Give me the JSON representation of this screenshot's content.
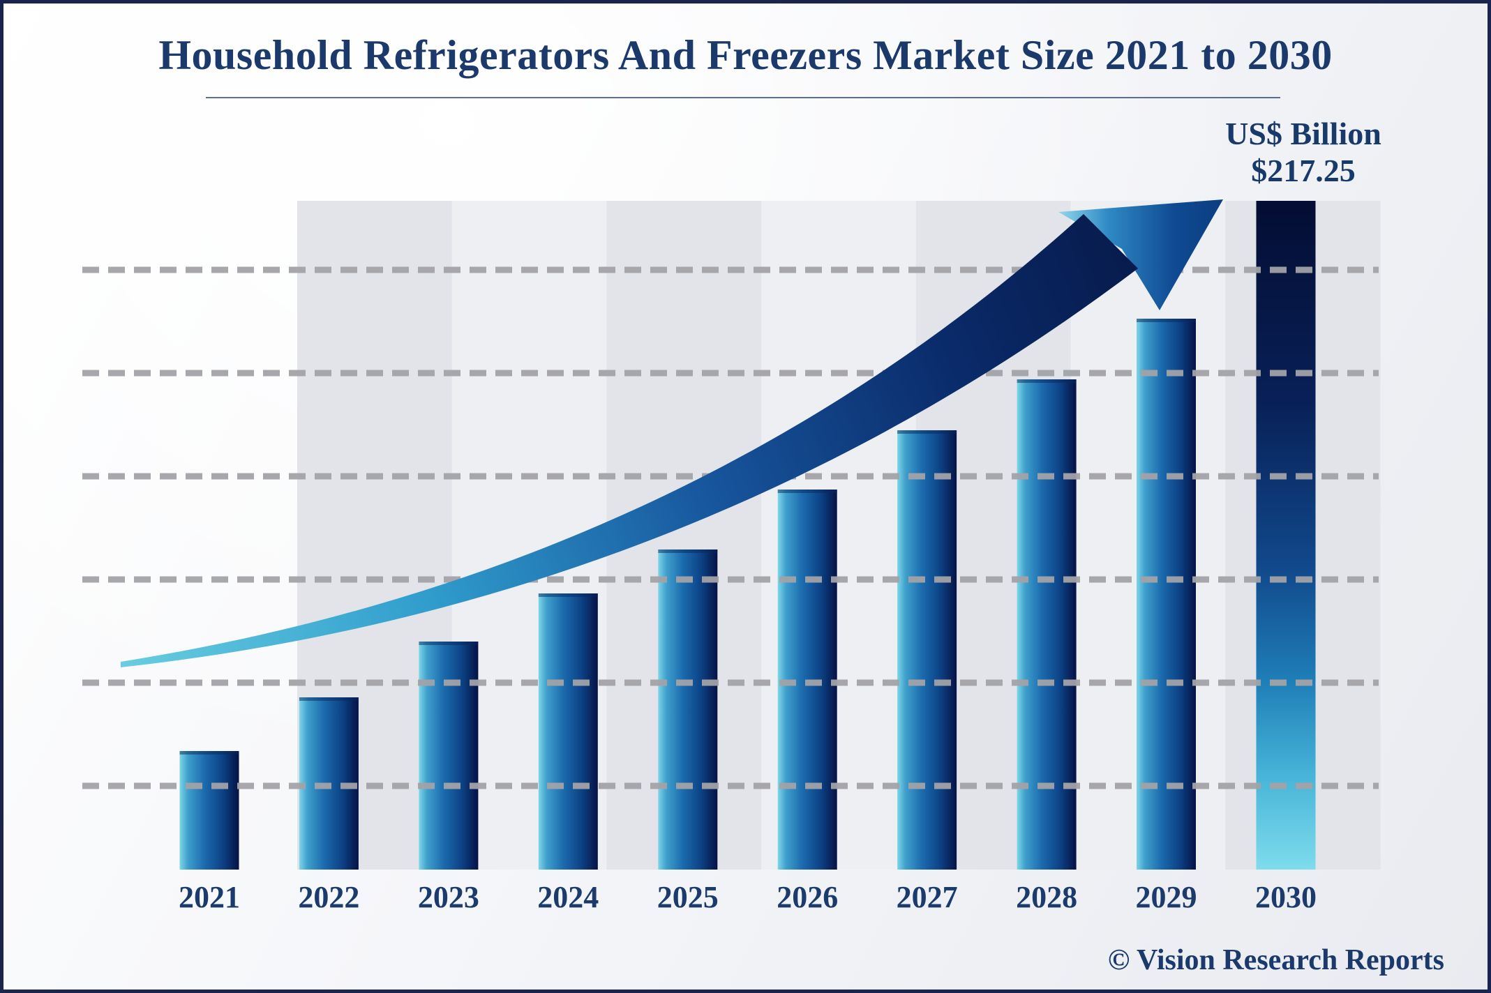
{
  "title": "Household Refrigerators And Freezers Market Size 2021 to 2030",
  "unit_label": "US$ Billion",
  "value_label": "$217.25",
  "footer": "© Vision Research Reports",
  "chart_data": {
    "type": "bar",
    "title": "Household Refrigerators And Freezers Market Size 2021 to 2030",
    "unit": "US$ Billion",
    "categories": [
      "2021",
      "2022",
      "2023",
      "2024",
      "2025",
      "2026",
      "2027",
      "2028",
      "2029",
      "2030"
    ],
    "relative_heights_pct": [
      17.7,
      25.8,
      34.1,
      41.3,
      47.9,
      56.8,
      65.7,
      73.3,
      82.4,
      100
    ],
    "labeled_values": {
      "2030": 217.25
    },
    "value_label_2030": "$217.25",
    "value_axis_visible": false,
    "gridlines": {
      "count": 6,
      "style": "dashed",
      "color": "#a3a3a8"
    },
    "annotations": [
      "upward curved trend arrow from 2021 toward 2030"
    ],
    "legend": null,
    "colors": {
      "bar_gradient_left_to_right": [
        "#7dd6e8",
        "#3f9fcc",
        "#1b6aad",
        "#0c4386",
        "#061245"
      ],
      "bar_2030_gradient_top_to_bottom": [
        "#040d33",
        "#082057",
        "#11498c",
        "#1f7fb8",
        "#47b4d8",
        "#7edcec"
      ],
      "arrow_gradient": [
        "#68cde0",
        "#2f9ccc",
        "#17559c",
        "#071a4a"
      ],
      "stripe_dark": "#e2e4e9",
      "stripe_light": "#edeff3",
      "text": "#1b3a6b",
      "border": "#19254e"
    }
  }
}
